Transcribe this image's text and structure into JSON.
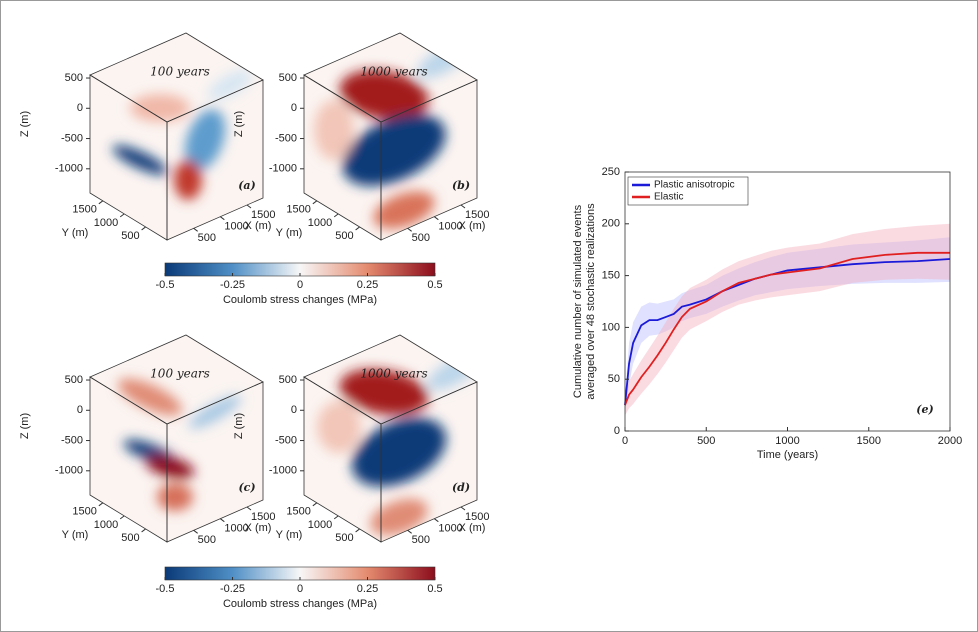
{
  "cube_panels": [
    {
      "title": "100 years",
      "label": "(a)",
      "zlabel": "Z (m)",
      "ylabel": "Y (m)",
      "xlabel": "X (m)",
      "zlim": [
        -1400,
        550
      ],
      "zticks": [
        500,
        0,
        -500,
        -1000
      ],
      "ylim": [
        0,
        1800
      ],
      "yticks": [
        1500,
        1000,
        500
      ],
      "xlim": [
        0,
        1800
      ],
      "xticks": [
        1500,
        1000,
        500
      ]
    },
    {
      "title": "1000 years",
      "label": "(b)",
      "zlabel": "Z (m)",
      "ylabel": "Y (m)",
      "xlabel": "X (m)",
      "zlim": [
        -1400,
        550
      ],
      "zticks": [
        500,
        0,
        -500,
        -1000
      ],
      "ylim": [
        0,
        1800
      ],
      "yticks": [
        1500,
        1000,
        500
      ],
      "xlim": [
        0,
        1800
      ],
      "xticks": [
        1500,
        1000,
        500
      ]
    },
    {
      "title": "100 years",
      "label": "(c)",
      "zlabel": "Z (m)",
      "ylabel": "Y (m)",
      "xlabel": "X (m)",
      "zlim": [
        -1400,
        550
      ],
      "zticks": [
        500,
        0,
        -500,
        -1000
      ],
      "ylim": [
        0,
        1800
      ],
      "yticks": [
        1500,
        1000,
        500
      ],
      "xlim": [
        0,
        1800
      ],
      "xticks": [
        1500,
        1000,
        500
      ]
    },
    {
      "title": "1000 years",
      "label": "(d)",
      "zlabel": "Z (m)",
      "ylabel": "Y (m)",
      "xlabel": "X (m)",
      "zlim": [
        -1400,
        550
      ],
      "zticks": [
        500,
        0,
        -500,
        -1000
      ],
      "ylim": [
        0,
        1800
      ],
      "yticks": [
        1500,
        1000,
        500
      ],
      "xlim": [
        0,
        1800
      ],
      "xticks": [
        1500,
        1000,
        500
      ]
    }
  ],
  "colorbars": [
    {
      "label": "Coulomb stress changes (MPa)",
      "lim": [
        -0.5,
        0.5
      ],
      "ticks": [
        -0.5,
        -0.25,
        0,
        0.25,
        0.5
      ]
    },
    {
      "label": "Coulomb stress changes (MPa)",
      "lim": [
        -0.5,
        0.5
      ],
      "ticks": [
        -0.5,
        -0.25,
        0,
        0.25,
        0.5
      ]
    }
  ],
  "chart_data": {
    "type": "line",
    "annotation": "(e)",
    "xlabel": "Time (years)",
    "ylabel": [
      "Cumulative number of simulated events",
      "averaged over 48 stochastic realizations"
    ],
    "x": [
      0,
      25,
      50,
      100,
      150,
      200,
      250,
      300,
      350,
      400,
      500,
      600,
      700,
      800,
      900,
      1000,
      1200,
      1400,
      1600,
      1800,
      2000
    ],
    "series": [
      {
        "name": "Plastic anisotropic",
        "color": "#1a1ad8",
        "band_color": "#b8bcff",
        "values": [
          25,
          65,
          85,
          102,
          107,
          107,
          110,
          113,
          120,
          122,
          127,
          135,
          141,
          147,
          151,
          155,
          158,
          161,
          163,
          164,
          166
        ],
        "lower": [
          18,
          45,
          65,
          85,
          92,
          93,
          96,
          100,
          106,
          109,
          113,
          120,
          126,
          131,
          134,
          137,
          140,
          142,
          143,
          143,
          144
        ],
        "upper": [
          32,
          85,
          105,
          120,
          124,
          123,
          125,
          127,
          133,
          136,
          141,
          150,
          157,
          163,
          168,
          172,
          176,
          180,
          182,
          184,
          187
        ]
      },
      {
        "name": "Elastic",
        "color": "#e02020",
        "band_color": "#f5b0bf",
        "values": [
          25,
          35,
          40,
          52,
          62,
          73,
          85,
          98,
          110,
          118,
          125,
          135,
          143,
          147,
          151,
          153,
          157,
          166,
          170,
          172,
          172
        ],
        "lower": [
          15,
          22,
          26,
          36,
          45,
          55,
          66,
          78,
          90,
          98,
          106,
          115,
          122,
          126,
          129,
          131,
          135,
          143,
          146,
          147,
          146
        ],
        "upper": [
          35,
          48,
          55,
          68,
          80,
          92,
          105,
          118,
          130,
          138,
          146,
          156,
          164,
          169,
          174,
          177,
          181,
          190,
          195,
          198,
          200
        ]
      }
    ],
    "xlim": [
      0,
      2000
    ],
    "xticks": [
      0,
      500,
      1000,
      1500,
      2000
    ],
    "ylim": [
      0,
      250
    ],
    "yticks": [
      0,
      50,
      100,
      150,
      200,
      250
    ],
    "legend": "upper-left"
  }
}
